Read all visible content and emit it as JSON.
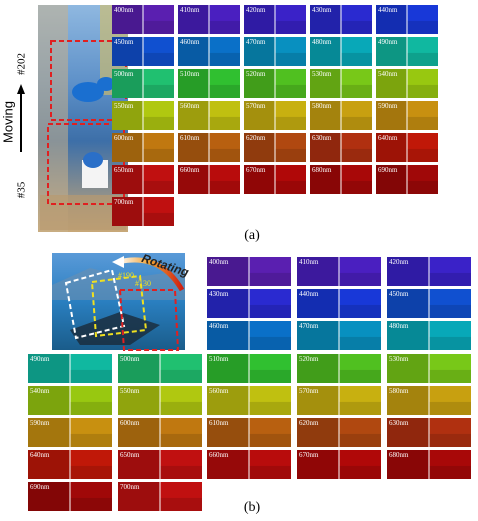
{
  "panel_a": {
    "side_labels": [
      "#202",
      "Moving",
      "#35"
    ],
    "caption": "(a)",
    "tiles": [
      {
        "label": "400nm",
        "color": "#5a1fb0"
      },
      {
        "label": "410nm",
        "color": "#4a1fc0"
      },
      {
        "label": "420nm",
        "color": "#3a22c8"
      },
      {
        "label": "430nm",
        "color": "#2a2ad0"
      },
      {
        "label": "440nm",
        "color": "#1838d8"
      },
      {
        "label": "450nm",
        "color": "#1050d0"
      },
      {
        "label": "460nm",
        "color": "#0a70c8"
      },
      {
        "label": "470nm",
        "color": "#0890c0"
      },
      {
        "label": "480nm",
        "color": "#08a8b8"
      },
      {
        "label": "490nm",
        "color": "#10b8a0"
      },
      {
        "label": "500nm",
        "color": "#20c070"
      },
      {
        "label": "510nm",
        "color": "#30c030"
      },
      {
        "label": "520nm",
        "color": "#50c020"
      },
      {
        "label": "530nm",
        "color": "#78c818"
      },
      {
        "label": "540nm",
        "color": "#98c810"
      },
      {
        "label": "550nm",
        "color": "#b0c810"
      },
      {
        "label": "560nm",
        "color": "#c0c010"
      },
      {
        "label": "570nm",
        "color": "#c8b010"
      },
      {
        "label": "580nm",
        "color": "#c8a010"
      },
      {
        "label": "590nm",
        "color": "#c89010"
      },
      {
        "label": "600nm",
        "color": "#c07810"
      },
      {
        "label": "610nm",
        "color": "#b86010"
      },
      {
        "label": "620nm",
        "color": "#b04810"
      },
      {
        "label": "630nm",
        "color": "#b03010"
      },
      {
        "label": "640nm",
        "color": "#c01808"
      },
      {
        "label": "650nm",
        "color": "#c01010"
      },
      {
        "label": "660nm",
        "color": "#b80c0c"
      },
      {
        "label": "670nm",
        "color": "#b00808"
      },
      {
        "label": "680nm",
        "color": "#a80808"
      },
      {
        "label": "690nm",
        "color": "#a00808"
      },
      {
        "label": "700nm",
        "color": "#c01010"
      }
    ]
  },
  "panel_b": {
    "annotations": [
      "Rotating",
      "#190",
      "#130"
    ],
    "caption": "(b)",
    "tiles": [
      {
        "label": "400nm",
        "color": "#5a1fb0"
      },
      {
        "label": "410nm",
        "color": "#4a1fc0"
      },
      {
        "label": "420nm",
        "color": "#3a22c8"
      },
      {
        "label": "430nm",
        "color": "#2a2ad0"
      },
      {
        "label": "440nm",
        "color": "#1838d8"
      },
      {
        "label": "450nm",
        "color": "#1050d0"
      },
      {
        "label": "460nm",
        "color": "#0a70c8"
      },
      {
        "label": "470nm",
        "color": "#0890c0"
      },
      {
        "label": "480nm",
        "color": "#08a8b8"
      },
      {
        "label": "490nm",
        "color": "#10b8a0"
      },
      {
        "label": "500nm",
        "color": "#20c070"
      },
      {
        "label": "510nm",
        "color": "#30c030"
      },
      {
        "label": "520nm",
        "color": "#50c020"
      },
      {
        "label": "530nm",
        "color": "#78c818"
      },
      {
        "label": "540nm",
        "color": "#98c810"
      },
      {
        "label": "550nm",
        "color": "#b0c810"
      },
      {
        "label": "560nm",
        "color": "#c0c010"
      },
      {
        "label": "570nm",
        "color": "#c8b010"
      },
      {
        "label": "580nm",
        "color": "#c8a010"
      },
      {
        "label": "590nm",
        "color": "#c89010"
      },
      {
        "label": "600nm",
        "color": "#c07810"
      },
      {
        "label": "610nm",
        "color": "#b86010"
      },
      {
        "label": "620nm",
        "color": "#b04810"
      },
      {
        "label": "630nm",
        "color": "#b03010"
      },
      {
        "label": "640nm",
        "color": "#c01808"
      },
      {
        "label": "650nm",
        "color": "#c01010"
      },
      {
        "label": "660nm",
        "color": "#b80c0c"
      },
      {
        "label": "670nm",
        "color": "#b00808"
      },
      {
        "label": "680nm",
        "color": "#a80808"
      },
      {
        "label": "690nm",
        "color": "#a00808"
      },
      {
        "label": "700nm",
        "color": "#c01010"
      }
    ]
  }
}
